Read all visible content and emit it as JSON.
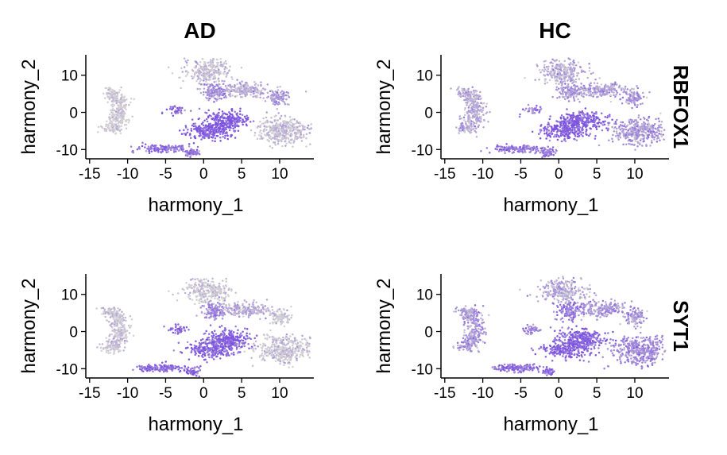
{
  "chart_data": {
    "type": "scatter",
    "plot_kind": "feature plot (faceted UMAP-style embedding)",
    "facet_columns": [
      "AD",
      "HC"
    ],
    "facet_rows": [
      "RBFOX1",
      "SYT1"
    ],
    "xlabel": "harmony_1",
    "ylabel": "harmony_2",
    "xlim": [
      -15.5,
      14.5
    ],
    "ylim": [
      -12.5,
      15.5
    ],
    "xticks": [
      -15,
      -10,
      -5,
      0,
      5,
      10
    ],
    "yticks": [
      -10,
      0,
      10
    ],
    "grid": false,
    "legend": "none",
    "colors": {
      "low": "#d3d3d3",
      "high": "#7b50e0"
    },
    "clusters": [
      {
        "name": "left-arc",
        "x": -11.5,
        "y": 0.5
      },
      {
        "name": "top-center",
        "x": 0.5,
        "y": 11
      },
      {
        "name": "upper-mid",
        "x": 1.5,
        "y": 5.5
      },
      {
        "name": "upper-right-mid",
        "x": 5.5,
        "y": 6
      },
      {
        "name": "far-upper-right",
        "x": 10,
        "y": 4
      },
      {
        "name": "small-left-mid",
        "x": -3.5,
        "y": 0.5
      },
      {
        "name": "center-mid",
        "x": 2,
        "y": -3.5
      },
      {
        "name": "right-cluster",
        "x": 10.5,
        "y": -5
      },
      {
        "name": "bottom-strip",
        "x": -4,
        "y": -10
      }
    ],
    "panels": [
      {
        "condition": "AD",
        "gene": "RBFOX1",
        "expression": [
          0.03,
          0.12,
          0.55,
          0.3,
          0.45,
          0.8,
          0.9,
          0.12,
          0.72
        ]
      },
      {
        "condition": "HC",
        "gene": "RBFOX1",
        "expression": [
          0.3,
          0.3,
          0.45,
          0.4,
          0.45,
          0.6,
          0.9,
          0.45,
          0.72
        ]
      },
      {
        "condition": "AD",
        "gene": "SYT1",
        "expression": [
          0.1,
          0.06,
          0.55,
          0.25,
          0.05,
          0.8,
          0.85,
          0.1,
          0.8
        ]
      },
      {
        "condition": "HC",
        "gene": "SYT1",
        "expression": [
          0.45,
          0.3,
          0.7,
          0.45,
          0.45,
          0.6,
          0.88,
          0.55,
          0.75
        ]
      }
    ]
  }
}
